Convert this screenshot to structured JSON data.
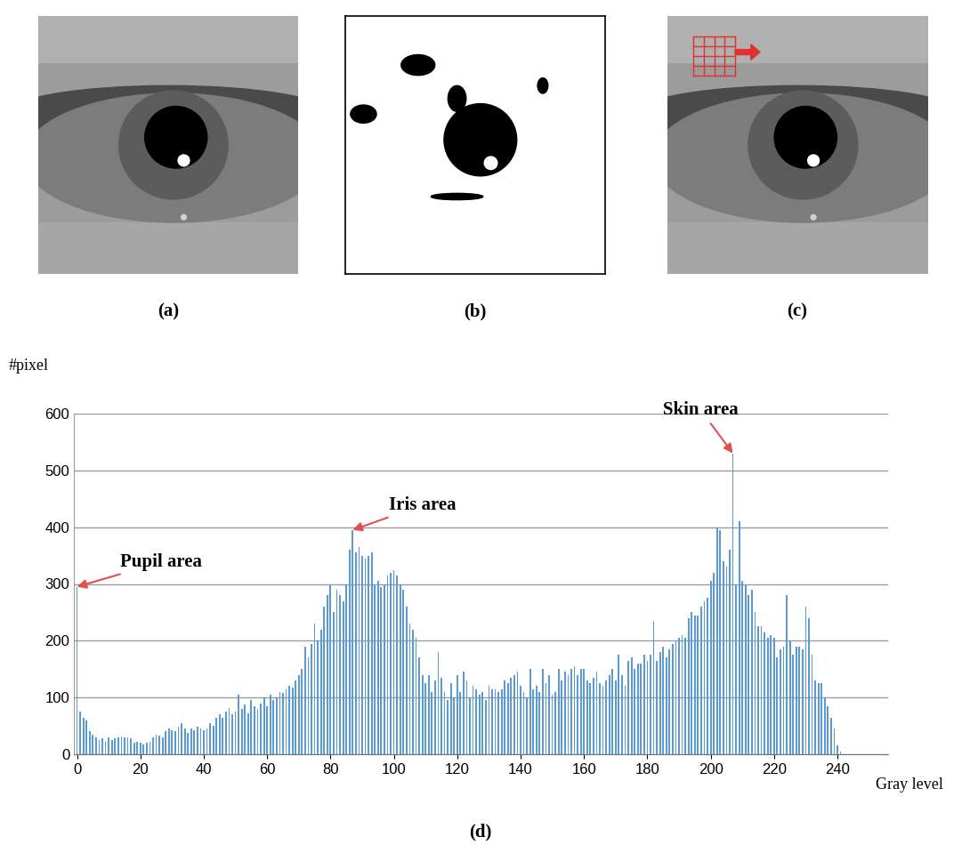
{
  "panel_labels": [
    "(a)",
    "(b)",
    "(c)"
  ],
  "chart_data": {
    "type": "bar",
    "label": "(d)",
    "x_label": "Gray level",
    "y_label": "#pixel",
    "x": [
      0,
      1,
      2,
      3,
      4,
      5,
      6,
      7,
      8,
      9,
      10,
      11,
      12,
      13,
      14,
      15,
      16,
      17,
      18,
      19,
      20,
      21,
      22,
      23,
      24,
      25,
      26,
      27,
      28,
      29,
      30,
      31,
      32,
      33,
      34,
      35,
      36,
      37,
      38,
      39,
      40,
      41,
      42,
      43,
      44,
      45,
      46,
      47,
      48,
      49,
      50,
      51,
      52,
      53,
      54,
      55,
      56,
      57,
      58,
      59,
      60,
      61,
      62,
      63,
      64,
      65,
      66,
      67,
      68,
      69,
      70,
      71,
      72,
      73,
      74,
      75,
      76,
      77,
      78,
      79,
      80,
      81,
      82,
      83,
      84,
      85,
      86,
      87,
      88,
      89,
      90,
      91,
      92,
      93,
      94,
      95,
      96,
      97,
      98,
      99,
      100,
      101,
      102,
      103,
      104,
      105,
      106,
      107,
      108,
      109,
      110,
      111,
      112,
      113,
      114,
      115,
      116,
      117,
      118,
      119,
      120,
      121,
      122,
      123,
      124,
      125,
      126,
      127,
      128,
      129,
      130,
      131,
      132,
      133,
      134,
      135,
      136,
      137,
      138,
      139,
      140,
      141,
      142,
      143,
      144,
      145,
      146,
      147,
      148,
      149,
      150,
      151,
      152,
      153,
      154,
      155,
      156,
      157,
      158,
      159,
      160,
      161,
      162,
      163,
      164,
      165,
      166,
      167,
      168,
      169,
      170,
      171,
      172,
      173,
      174,
      175,
      176,
      177,
      178,
      179,
      180,
      181,
      182,
      183,
      184,
      185,
      186,
      187,
      188,
      189,
      190,
      191,
      192,
      193,
      194,
      195,
      196,
      197,
      198,
      199,
      200,
      201,
      202,
      203,
      204,
      205,
      206,
      207,
      208,
      209,
      210,
      211,
      212,
      213,
      214,
      215,
      216,
      217,
      218,
      219,
      220,
      221,
      222,
      223,
      224,
      225,
      226,
      227,
      228,
      229,
      230,
      231,
      232,
      233,
      234,
      235,
      236,
      237,
      238,
      239,
      240,
      241
    ],
    "values": [
      295,
      75,
      65,
      60,
      40,
      35,
      30,
      25,
      28,
      22,
      30,
      25,
      28,
      30,
      32,
      30,
      30,
      28,
      20,
      22,
      20,
      18,
      20,
      22,
      30,
      35,
      33,
      30,
      40,
      45,
      42,
      40,
      48,
      55,
      45,
      38,
      45,
      42,
      48,
      45,
      42,
      45,
      55,
      50,
      65,
      70,
      65,
      75,
      82,
      70,
      75,
      105,
      80,
      88,
      72,
      95,
      85,
      80,
      90,
      100,
      85,
      105,
      95,
      100,
      110,
      108,
      115,
      120,
      118,
      130,
      140,
      150,
      190,
      170,
      195,
      230,
      200,
      220,
      260,
      280,
      298,
      250,
      290,
      280,
      270,
      300,
      360,
      395,
      355,
      365,
      350,
      345,
      350,
      355,
      300,
      305,
      295,
      300,
      315,
      320,
      325,
      315,
      300,
      290,
      260,
      230,
      220,
      205,
      170,
      140,
      125,
      140,
      110,
      130,
      180,
      135,
      110,
      95,
      125,
      100,
      140,
      110,
      145,
      130,
      100,
      120,
      115,
      105,
      110,
      95,
      120,
      115,
      115,
      110,
      115,
      130,
      125,
      135,
      140,
      145,
      120,
      110,
      100,
      150,
      115,
      120,
      110,
      150,
      125,
      140,
      105,
      110,
      150,
      130,
      145,
      140,
      150,
      155,
      140,
      150,
      150,
      130,
      125,
      135,
      145,
      125,
      120,
      130,
      140,
      150,
      130,
      175,
      140,
      120,
      165,
      170,
      150,
      160,
      160,
      175,
      165,
      175,
      235,
      165,
      180,
      190,
      170,
      185,
      195,
      200,
      205,
      210,
      205,
      240,
      250,
      245,
      245,
      260,
      270,
      275,
      305,
      320,
      400,
      395,
      340,
      330,
      360,
      530,
      300,
      410,
      305,
      300,
      280,
      290,
      250,
      225,
      225,
      215,
      205,
      210,
      205,
      170,
      185,
      190,
      280,
      200,
      175,
      190,
      190,
      185,
      260,
      240,
      175,
      130,
      125,
      125,
      100,
      85,
      65,
      45,
      15,
      5
    ],
    "color": "#5b9bd5",
    "xlim": [
      -1,
      256
    ],
    "xticks": [
      0,
      20,
      40,
      60,
      80,
      100,
      120,
      140,
      160,
      180,
      200,
      220,
      240
    ],
    "ylim": [
      0,
      600
    ],
    "yticks": [
      0,
      100,
      200,
      300,
      400,
      500,
      600
    ],
    "grid": true,
    "annotations": [
      {
        "text": "Pupil area",
        "x": 0
      },
      {
        "text": "Iris area",
        "x": 87
      },
      {
        "text": "Skin area",
        "x": 207
      }
    ]
  }
}
